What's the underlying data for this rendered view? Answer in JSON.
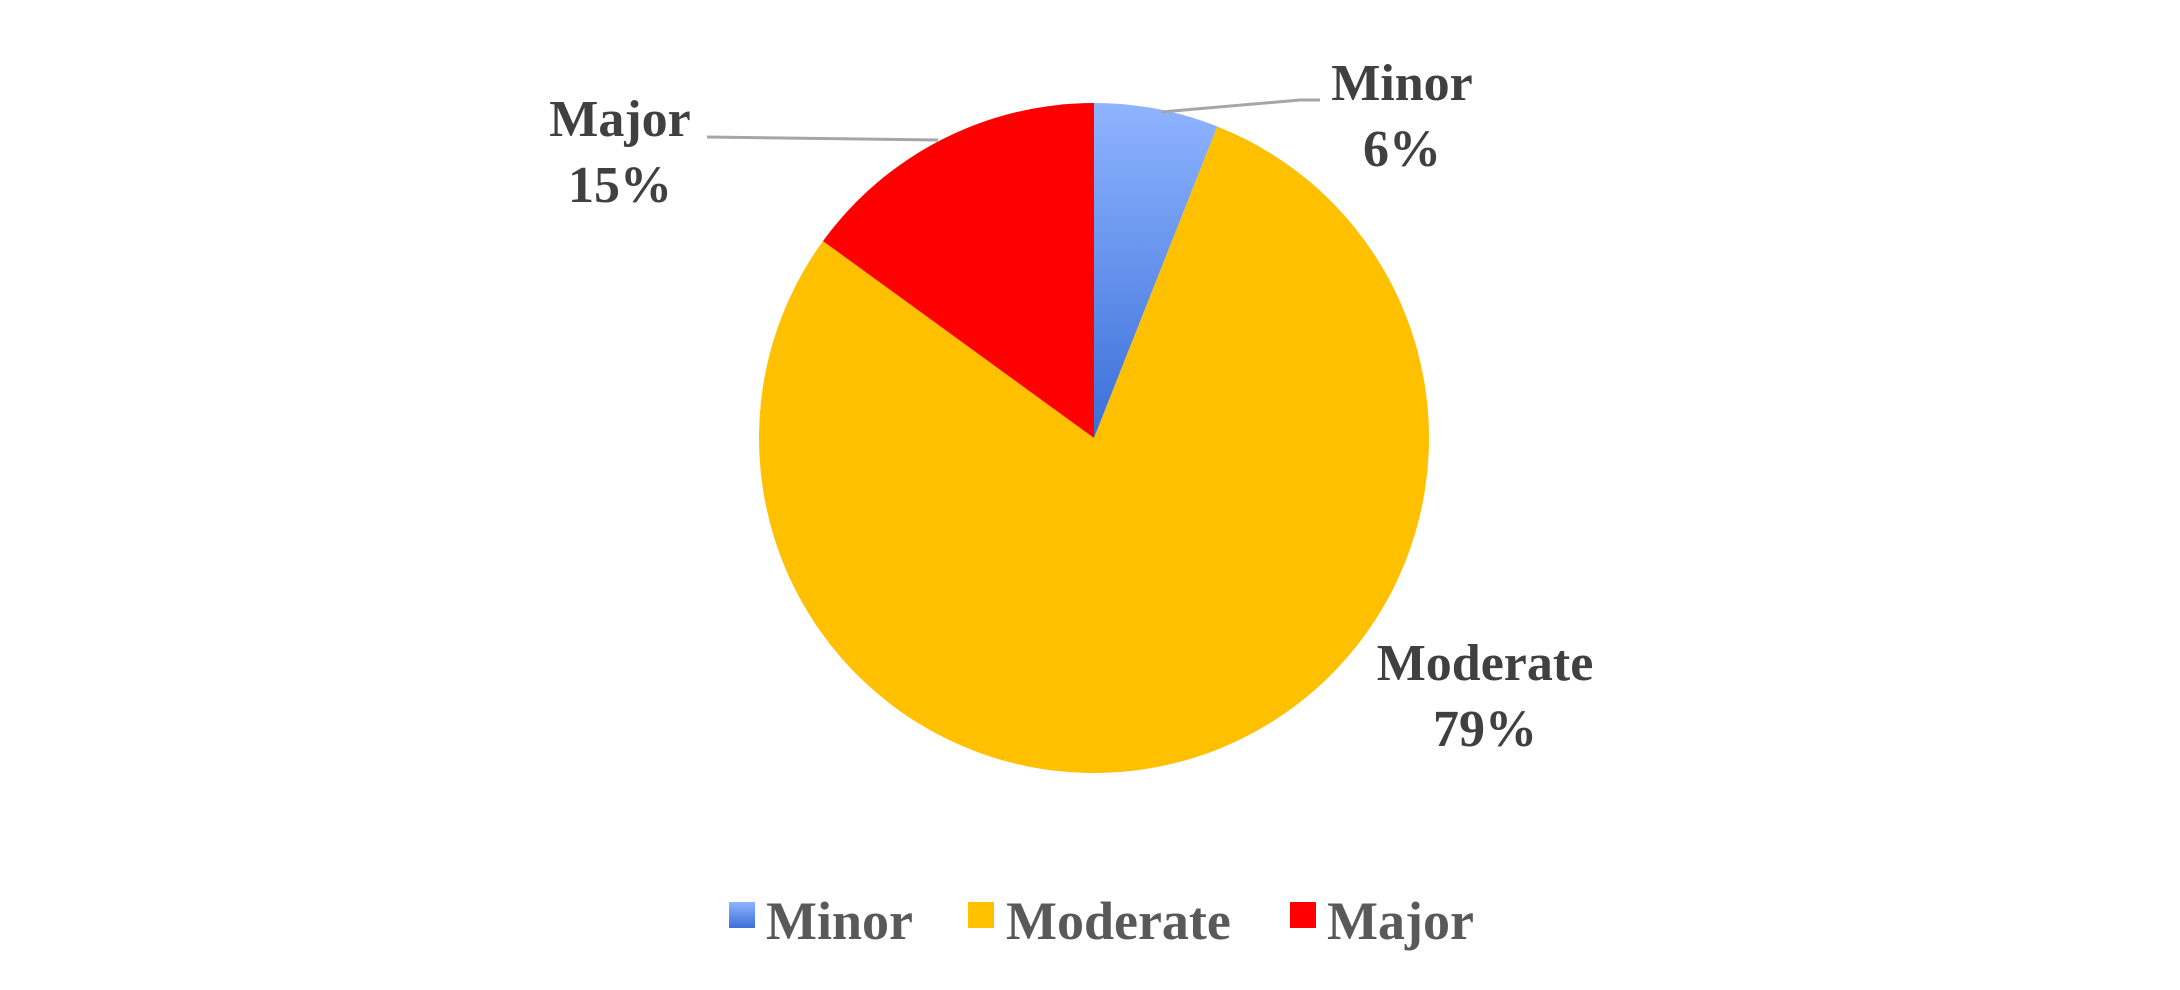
{
  "chart_data": {
    "type": "pie",
    "categories": [
      "Minor",
      "Moderate",
      "Major"
    ],
    "values": [
      6,
      79,
      15
    ],
    "value_format": "percent",
    "data_labels": [
      {
        "category": "Minor",
        "value": "6%"
      },
      {
        "category": "Moderate",
        "value": "79%"
      },
      {
        "category": "Major",
        "value": "15%"
      }
    ],
    "colors": {
      "Minor": [
        "#8fb4ff",
        "#3a6fd8"
      ],
      "Moderate": "#ffc000",
      "Major": "#ff0000"
    },
    "legend": {
      "position": "bottom",
      "entries": [
        "Minor",
        "Moderate",
        "Major"
      ]
    },
    "title": ""
  }
}
